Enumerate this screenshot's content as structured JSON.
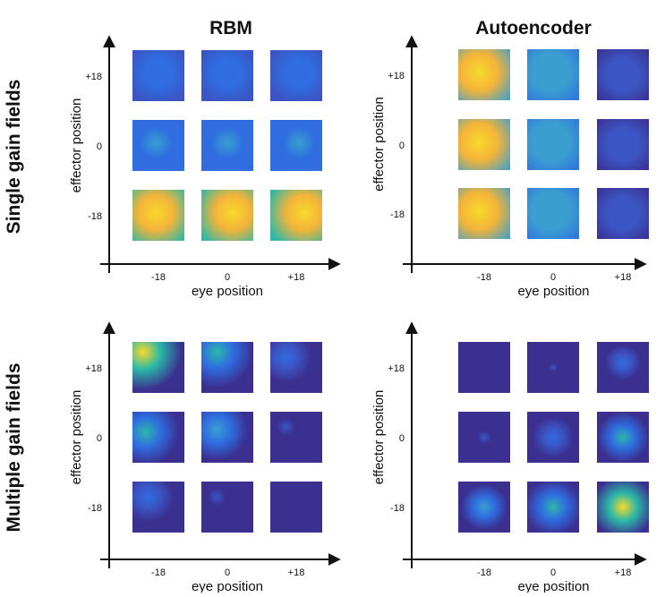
{
  "column_titles": [
    "RBM",
    "Autoencoder"
  ],
  "row_titles": [
    "Single gain fields",
    "Multiple gain fields"
  ],
  "panels": [
    {
      "x_label": "eye position",
      "y_label": "effector  position",
      "x_ticks": [
        "-18",
        "0",
        "+18"
      ],
      "y_ticks": [
        "+18",
        "0",
        "-18"
      ]
    },
    {
      "x_label": "eye position",
      "y_label": "effector  position",
      "x_ticks": [
        "-18",
        "0",
        "+18"
      ],
      "y_ticks": [
        "+18",
        "0",
        "-18"
      ]
    },
    {
      "x_label": "eye position",
      "y_label": "effector  position",
      "x_ticks": [
        "-18",
        "0",
        "+18"
      ],
      "y_ticks": [
        "+18",
        "0",
        "-18"
      ]
    },
    {
      "x_label": "eye position",
      "y_label": "effector  position",
      "x_ticks": [
        "-18",
        "0",
        "+18"
      ],
      "y_ticks": [
        "+18",
        "0",
        "-18"
      ]
    }
  ]
}
